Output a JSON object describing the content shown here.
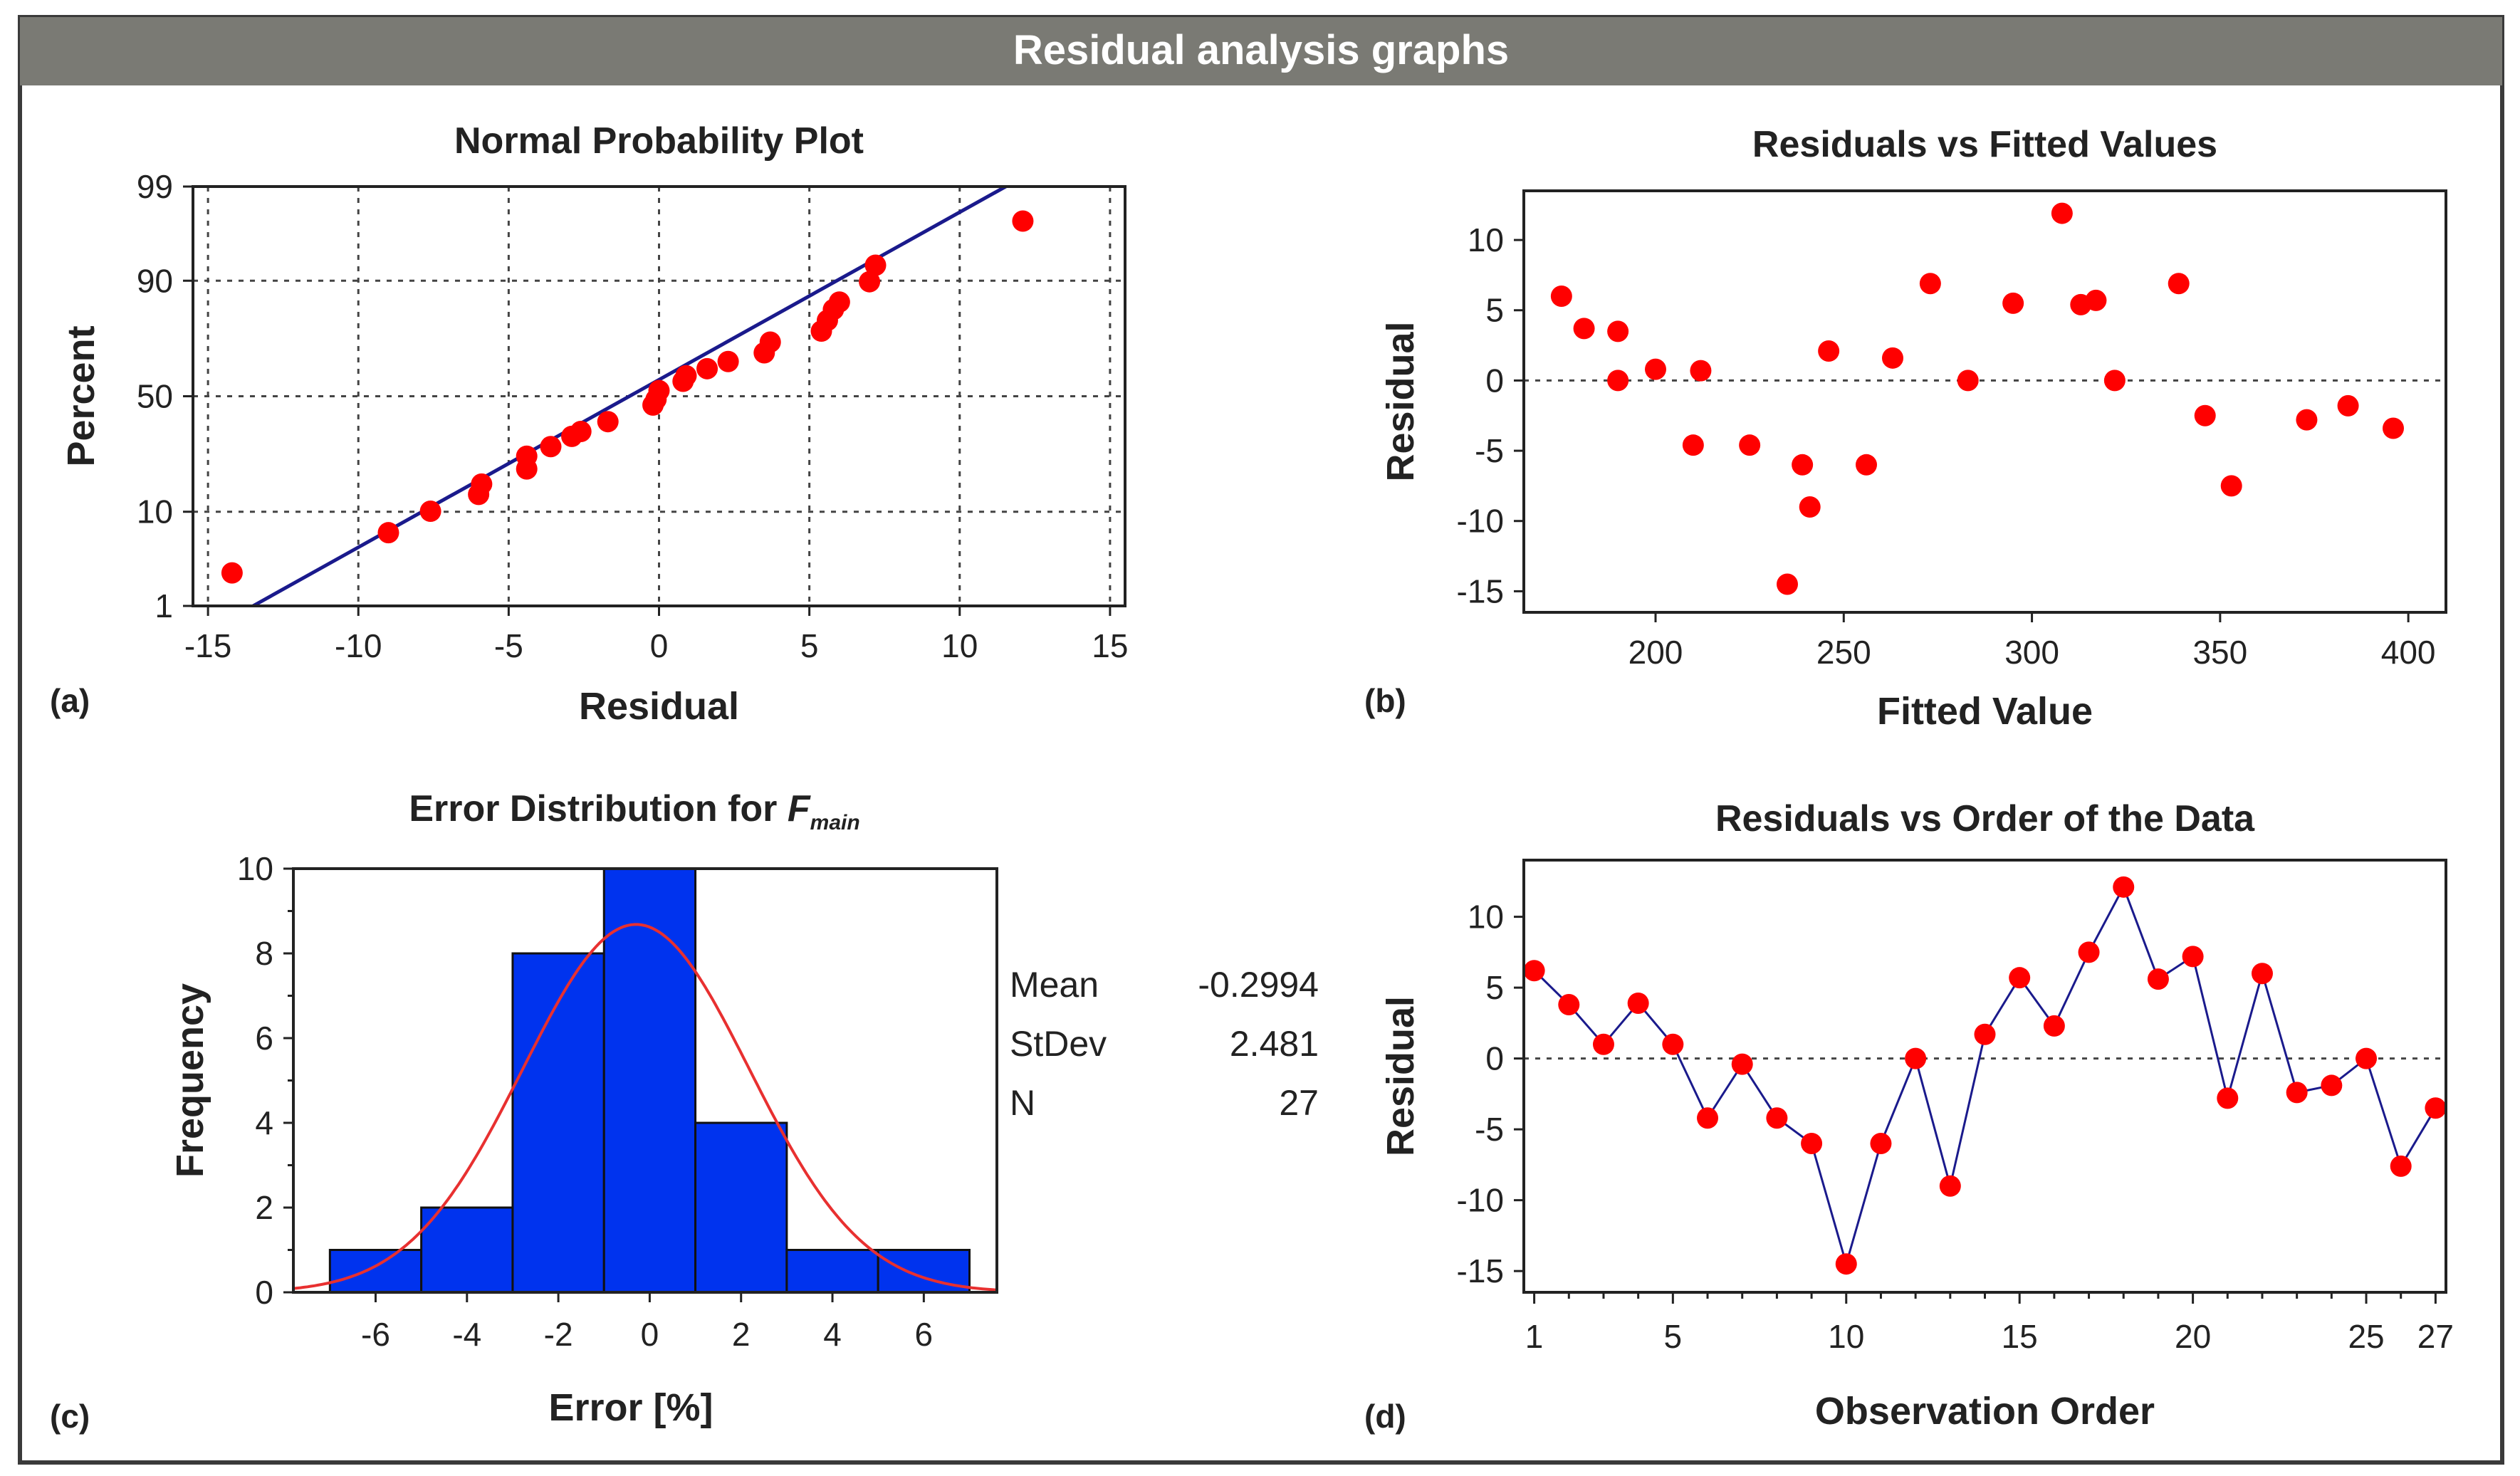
{
  "header": {
    "title": "Residual analysis graphs"
  },
  "colors": {
    "header_bg": "#7a7a74",
    "marker": "#ff0000",
    "line": "#1a1a8c",
    "bar": "#0033ee",
    "curve": "#e83030"
  },
  "panel_labels": {
    "a": "(a)",
    "b": "(b)",
    "c": "(c)",
    "d": "(d)"
  },
  "chart_data": [
    {
      "id": "npp",
      "type": "scatter",
      "title": "Normal Probability Plot",
      "xlabel": "Residual",
      "ylabel": "Percent",
      "xlim": [
        -15.5,
        15.5
      ],
      "xticks": [
        -15,
        -10,
        -5,
        0,
        5,
        10,
        15
      ],
      "xtick_labels": [
        "-15",
        "-10",
        "-5",
        "0",
        "5",
        "10",
        "15"
      ],
      "yticks": [
        1,
        10,
        50,
        90,
        99
      ],
      "ytick_labels": [
        "1",
        "10",
        "50",
        "90",
        "99"
      ],
      "y_scale": "normal-probability",
      "fit_line": {
        "x0": -13.5,
        "y0": 1,
        "x1": 14.5,
        "y1": 99.8
      },
      "points": [
        [
          -14.2,
          2.5
        ],
        [
          -9.0,
          6.5
        ],
        [
          -7.6,
          10.1
        ],
        [
          -6.0,
          13.8
        ],
        [
          -5.9,
          16.5
        ],
        [
          -4.4,
          21.0
        ],
        [
          -4.4,
          25.3
        ],
        [
          -3.6,
          28.8
        ],
        [
          -2.9,
          32.8
        ],
        [
          -2.6,
          34.8
        ],
        [
          -1.7,
          38.9
        ],
        [
          -0.2,
          46.1
        ],
        [
          -0.1,
          48.6
        ],
        [
          0.0,
          52.5
        ],
        [
          0.8,
          56.6
        ],
        [
          0.9,
          59.0
        ],
        [
          1.6,
          62.0
        ],
        [
          2.3,
          65.0
        ],
        [
          3.5,
          68.5
        ],
        [
          3.7,
          72.6
        ],
        [
          5.4,
          76.5
        ],
        [
          5.6,
          80.0
        ],
        [
          5.8,
          83.2
        ],
        [
          6.0,
          85.2
        ],
        [
          7.0,
          89.8
        ],
        [
          7.2,
          92.7
        ],
        [
          12.1,
          97.4
        ]
      ]
    },
    {
      "id": "rvf",
      "type": "scatter",
      "title": "Residuals vs Fitted Values",
      "xlabel": "Fitted Value",
      "ylabel": "Residual",
      "xlim": [
        165,
        410
      ],
      "ylim": [
        -16.5,
        13.5
      ],
      "xticks": [
        200,
        250,
        300,
        350,
        400
      ],
      "xtick_labels": [
        "200",
        "250",
        "300",
        "350",
        "400"
      ],
      "yticks": [
        -15,
        -10,
        -5,
        0,
        5,
        10
      ],
      "ytick_labels": [
        "-15",
        "-10",
        "-5",
        "0",
        "5",
        "10"
      ],
      "zero_line": true,
      "points": [
        [
          175,
          6.0
        ],
        [
          181,
          3.7
        ],
        [
          190,
          3.5
        ],
        [
          190,
          0.0
        ],
        [
          200,
          0.8
        ],
        [
          210,
          -4.6
        ],
        [
          212,
          0.7
        ],
        [
          225,
          -4.6
        ],
        [
          235,
          -14.5
        ],
        [
          239,
          -6.0
        ],
        [
          241,
          -9.0
        ],
        [
          246,
          2.1
        ],
        [
          256,
          -6.0
        ],
        [
          263,
          1.6
        ],
        [
          273,
          6.9
        ],
        [
          283,
          0.0
        ],
        [
          295,
          5.5
        ],
        [
          308,
          11.9
        ],
        [
          313,
          5.4
        ],
        [
          317,
          5.7
        ],
        [
          322,
          0.0
        ],
        [
          339,
          6.9
        ],
        [
          346,
          -2.5
        ],
        [
          353,
          -7.5
        ],
        [
          373,
          -2.8
        ],
        [
          384,
          -1.8
        ],
        [
          396,
          -3.4
        ]
      ]
    },
    {
      "id": "hist",
      "type": "bar",
      "title": "Error Distribution for ",
      "title_var": "F",
      "title_sub": "main",
      "xlabel": "Error [%]",
      "ylabel": "Frequency",
      "xlim": [
        -7.8,
        7.6
      ],
      "ylim": [
        0,
        10
      ],
      "xticks": [
        -6,
        -4,
        -2,
        0,
        2,
        4,
        6
      ],
      "xtick_labels": [
        "-6",
        "-4",
        "-2",
        "0",
        "2",
        "4",
        "6"
      ],
      "yticks": [
        0,
        2,
        4,
        6,
        8,
        10
      ],
      "ytick_labels": [
        "0",
        "2",
        "4",
        "6",
        "8",
        "10"
      ],
      "bin_edges": [
        -7,
        -5,
        -3,
        -1,
        1,
        3,
        5,
        7
      ],
      "values": [
        1,
        2,
        8,
        10,
        4,
        1,
        1
      ],
      "bin_width": 2,
      "fit_curve": {
        "type": "normal",
        "mean": -0.2994,
        "sd": 2.481,
        "n": 27
      },
      "stats": [
        {
          "label": "Mean",
          "value": "-0.2994"
        },
        {
          "label": "StDev",
          "value": "2.481"
        },
        {
          "label": "N",
          "value": "27"
        }
      ]
    },
    {
      "id": "rvo",
      "type": "line",
      "title": "Residuals vs Order of the Data",
      "xlabel": "Observation Order",
      "ylabel": "Residual",
      "xlim": [
        0.7,
        27.3
      ],
      "ylim": [
        -16.5,
        14
      ],
      "xticks": [
        1,
        5,
        10,
        15,
        20,
        25,
        27
      ],
      "xtick_labels": [
        "1",
        "5",
        "10",
        "15",
        "20",
        "25",
        "27"
      ],
      "minor_xticks": [
        2,
        3,
        4,
        6,
        7,
        8,
        9,
        11,
        12,
        13,
        14,
        16,
        17,
        18,
        19,
        21,
        22,
        23,
        24,
        26
      ],
      "yticks": [
        -15,
        -10,
        -5,
        0,
        5,
        10
      ],
      "ytick_labels": [
        "-15",
        "-10",
        "-5",
        "0",
        "5",
        "10"
      ],
      "zero_line": true,
      "x": [
        1,
        2,
        3,
        4,
        5,
        6,
        7,
        8,
        9,
        10,
        11,
        12,
        13,
        14,
        15,
        16,
        17,
        18,
        19,
        20,
        21,
        22,
        23,
        24,
        25,
        26,
        27
      ],
      "values": [
        6.2,
        3.8,
        1.0,
        3.9,
        1.0,
        -4.2,
        -0.4,
        -4.2,
        -6.0,
        -14.5,
        -6.0,
        0.0,
        -9.0,
        1.7,
        5.7,
        2.3,
        7.5,
        12.1,
        5.6,
        7.2,
        -2.8,
        6.0,
        -2.4,
        -1.9,
        0.0,
        -7.6,
        -3.5
      ]
    }
  ]
}
